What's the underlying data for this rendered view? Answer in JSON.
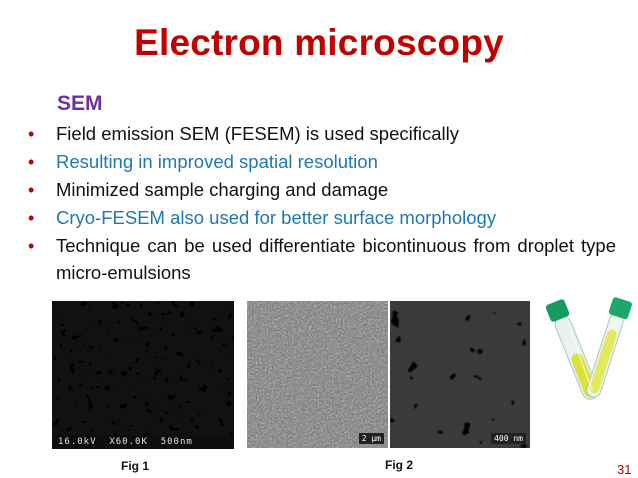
{
  "slide": {
    "title": "Electron microscopy",
    "subtitle": "SEM",
    "bullets": [
      {
        "text": "Field emission SEM (FESEM) is used specifically",
        "color": "#111111"
      },
      {
        "text": "Resulting in improved spatial resolution",
        "color": "#1f77b4"
      },
      {
        "text": "Minimized sample charging and damage",
        "color": "#111111"
      },
      {
        "text": "Cryo-FESEM also used for better surface morphology",
        "color": "#1f77b4"
      },
      {
        "text": "Technique can be used differentiate bicontinuous from droplet type micro-emulsions",
        "color": "#111111"
      }
    ],
    "bullet_marker": "•",
    "figures": {
      "fig1": {
        "caption": "Fig 1",
        "databar": "16.0kV  X60.0K  500nm"
      },
      "fig2": {
        "caption": "Fig 2",
        "left_scale": "2 µm",
        "right_scale": "400 nm"
      }
    },
    "page_number": "31",
    "accent_color": "#c00000",
    "subtitle_color": "#7030a0"
  }
}
